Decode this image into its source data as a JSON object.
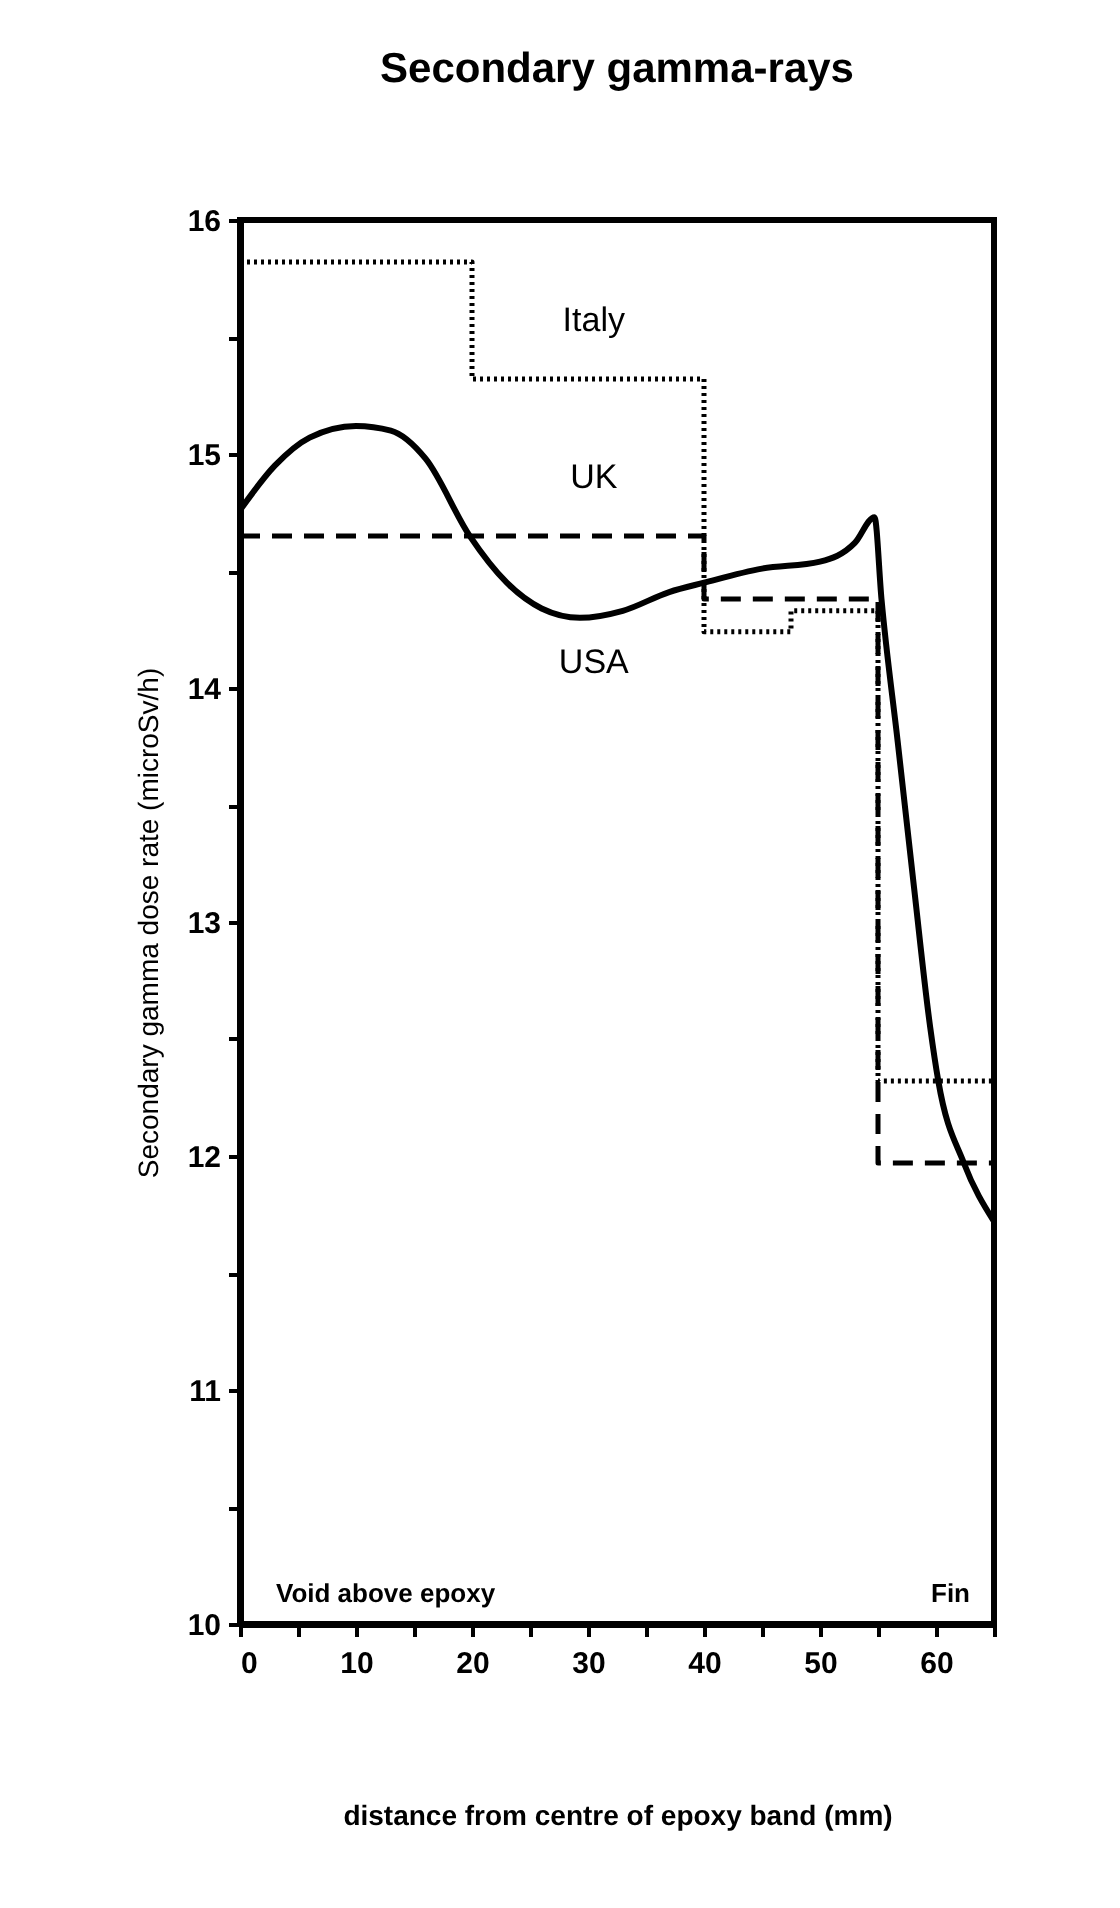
{
  "chart_data": {
    "type": "line",
    "title": "Secondary   gamma-rays",
    "xlabel": "distance from centre of epoxy band (mm)",
    "ylabel": "Secondary gamma dose rate (microSv/h)",
    "xlim": [
      0,
      65
    ],
    "ylim": [
      10,
      16
    ],
    "xticks": [
      0,
      {
        "value": 5,
        "label": null
      },
      10,
      {
        "value": 15,
        "label": null
      },
      20,
      {
        "value": 25,
        "label": null
      },
      30,
      {
        "value": 35,
        "label": null
      },
      40,
      {
        "value": 45,
        "label": null
      },
      50,
      {
        "value": 55,
        "label": null
      },
      60,
      {
        "value": 65,
        "label": null
      }
    ],
    "yticks": [
      10,
      {
        "value": 10.5,
        "label": null
      },
      11,
      {
        "value": 11.5,
        "label": null
      },
      12,
      {
        "value": 12.5,
        "label": null
      },
      13,
      {
        "value": 13.5,
        "label": null
      },
      14,
      {
        "value": 14.5,
        "label": null
      },
      15,
      {
        "value": 15.5,
        "label": null
      },
      16
    ],
    "grid": false,
    "legend": false,
    "series": [
      {
        "name": "Italy",
        "type": "step",
        "color": "#000000",
        "line_style": "dotted",
        "x": [
          0,
          20,
          40,
          47.5,
          55,
          65
        ],
        "values": [
          15.82,
          15.32,
          14.24,
          14.33,
          12.32,
          12.32
        ]
      },
      {
        "name": "UK",
        "type": "step",
        "color": "#000000",
        "line_style": "dashed",
        "x": [
          0,
          40,
          55,
          65
        ],
        "values": [
          14.65,
          14.38,
          11.97,
          11.97
        ]
      },
      {
        "name": "USA",
        "type": "line",
        "color": "#000000",
        "line_style": "solid",
        "x": [
          0,
          3,
          6,
          10,
          13,
          16,
          19.8,
          23,
          26,
          29.3,
          33,
          37,
          40,
          45,
          50,
          53,
          54.7,
          55.3,
          56.7,
          58.1,
          59.5,
          60.2,
          62.4,
          65
        ],
        "values": [
          14.76,
          14.95,
          15.07,
          15.12,
          15.1,
          14.98,
          14.65,
          14.45,
          14.34,
          14.3,
          14.33,
          14.41,
          14.45,
          14.51,
          14.54,
          14.62,
          14.73,
          14.38,
          13.77,
          13.15,
          12.55,
          12.32,
          11.97,
          11.72
        ]
      }
    ],
    "annotations": [
      "Void above epoxy",
      "Fin"
    ]
  }
}
